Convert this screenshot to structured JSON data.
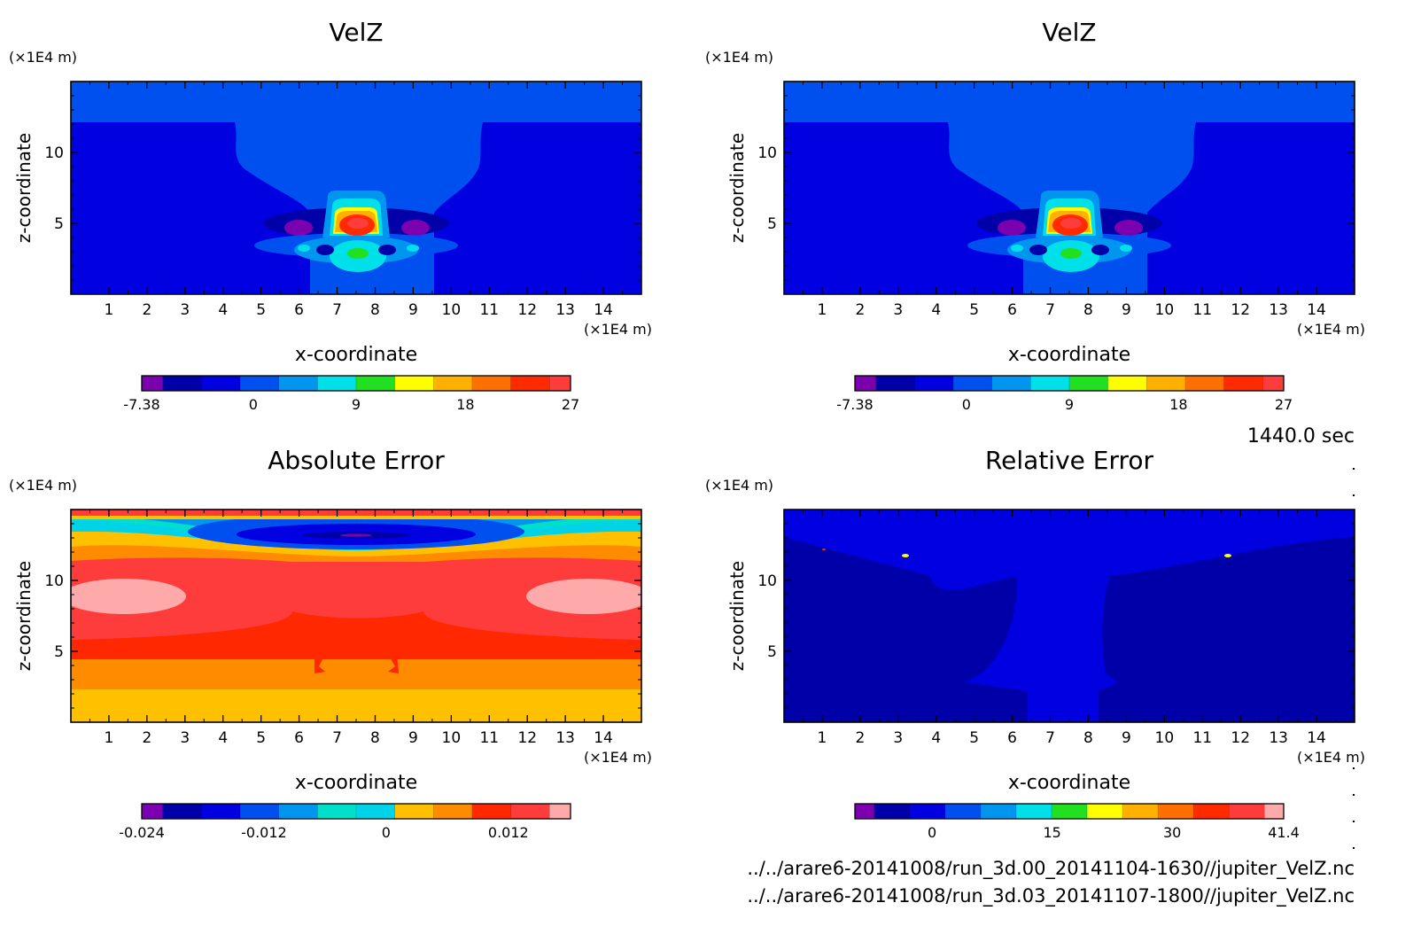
{
  "time_label": "1440.0 sec",
  "file_paths": [
    "../../arare6-20141008/run_3d.00_20141104-1630//jupiter_VelZ.nc",
    "../../arare6-20141008/run_3d.03_20141107-1800//jupiter_VelZ.nc"
  ],
  "chart_data": [
    {
      "type": "heatmap",
      "title": "VelZ",
      "xlabel": "x-coordinate",
      "ylabel": "z-coordinate",
      "xunit": "(×1E4 m)",
      "yunit": "(×1E4 m)",
      "xlim": [
        0,
        15
      ],
      "ylim": [
        0,
        15
      ],
      "xticks": [
        "1",
        "2",
        "3",
        "4",
        "5",
        "6",
        "7",
        "8",
        "9",
        "10",
        "11",
        "12",
        "13",
        "14"
      ],
      "yticks": [
        "5",
        "10"
      ],
      "colorbar": {
        "colors": [
          "#7a00b0",
          "#0000a8",
          "#0000e0",
          "#0050f0",
          "#0096f0",
          "#00e0e8",
          "#20e020",
          "#ffff00",
          "#ffb000",
          "#ff7000",
          "#ff2a00",
          "#ff3c3c"
        ],
        "tick_labels": [
          "-7.38",
          "0",
          "9",
          "18",
          "27"
        ]
      }
    },
    {
      "type": "heatmap",
      "title": "VelZ",
      "xlabel": "x-coordinate",
      "ylabel": "z-coordinate",
      "xunit": "(×1E4 m)",
      "yunit": "(×1E4 m)",
      "xlim": [
        0,
        15
      ],
      "ylim": [
        0,
        15
      ],
      "xticks": [
        "1",
        "2",
        "3",
        "4",
        "5",
        "6",
        "7",
        "8",
        "9",
        "10",
        "11",
        "12",
        "13",
        "14"
      ],
      "yticks": [
        "5",
        "10"
      ],
      "colorbar": {
        "colors": [
          "#7a00b0",
          "#0000a8",
          "#0000e0",
          "#0050f0",
          "#0096f0",
          "#00e0e8",
          "#20e020",
          "#ffff00",
          "#ffb000",
          "#ff7000",
          "#ff2a00",
          "#ff3c3c"
        ],
        "tick_labels": [
          "-7.38",
          "0",
          "9",
          "18",
          "27"
        ]
      }
    },
    {
      "type": "heatmap",
      "title": "Absolute Error",
      "xlabel": "x-coordinate",
      "ylabel": "z-coordinate",
      "xunit": "(×1E4 m)",
      "yunit": "(×1E4 m)",
      "xlim": [
        0,
        15
      ],
      "ylim": [
        0,
        15
      ],
      "xticks": [
        "1",
        "2",
        "3",
        "4",
        "5",
        "6",
        "7",
        "8",
        "9",
        "10",
        "11",
        "12",
        "13",
        "14"
      ],
      "yticks": [
        "5",
        "10"
      ],
      "colorbar": {
        "colors": [
          "#7a00b0",
          "#0000a8",
          "#0000e0",
          "#0050f0",
          "#0096f0",
          "#00e0c8",
          "#00d2e8",
          "#ffc000",
          "#ff8c00",
          "#ff2800",
          "#ff3c3c",
          "#ffaaaa"
        ],
        "tick_labels": [
          "-0.024",
          "-0.012",
          "0",
          "0.012"
        ]
      }
    },
    {
      "type": "heatmap",
      "title": "Relative Error",
      "xlabel": "x-coordinate",
      "ylabel": "z-coordinate",
      "xunit": "(×1E4 m)",
      "yunit": "(×1E4 m)",
      "xlim": [
        0,
        15
      ],
      "ylim": [
        0,
        15
      ],
      "xticks": [
        "1",
        "2",
        "3",
        "4",
        "5",
        "6",
        "7",
        "8",
        "9",
        "10",
        "11",
        "12",
        "13",
        "14"
      ],
      "yticks": [
        "5",
        "10"
      ],
      "colorbar": {
        "colors": [
          "#7a00b0",
          "#0000a8",
          "#0000e0",
          "#0050f0",
          "#0096f0",
          "#00e0e8",
          "#20e020",
          "#ffff00",
          "#ffb000",
          "#ff7000",
          "#ff2a00",
          "#ff3c3c",
          "#ffaaaa"
        ],
        "tick_labels": [
          "0",
          "15",
          "30",
          "41.4"
        ]
      }
    }
  ]
}
